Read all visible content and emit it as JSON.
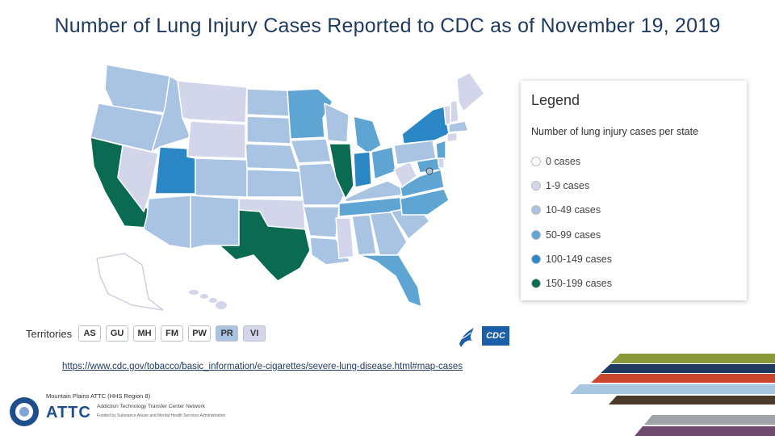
{
  "title": "Number of Lung Injury Cases Reported to CDC as of November 19, 2019",
  "legend": {
    "title": "Legend",
    "subtitle": "Number of lung injury cases per state",
    "items": [
      {
        "label": "0 cases",
        "color": "#ffffff"
      },
      {
        "label": "1-9 cases",
        "color": "#d3d6ea"
      },
      {
        "label": "10-49 cases",
        "color": "#a9c4e2"
      },
      {
        "label": "50-99 cases",
        "color": "#5ea5d4"
      },
      {
        "label": "100-149 cases",
        "color": "#2b86c5"
      },
      {
        "label": "150-199 cases",
        "color": "#0a6b52"
      }
    ]
  },
  "territories": {
    "label": "Territories",
    "items": [
      "AS",
      "GU",
      "MH",
      "FM",
      "PW",
      "PR",
      "VI"
    ]
  },
  "source_url": "https://www.cdc.gov/tobacco/basic_information/e-cigarettes/severe-lung-disease.html#map-cases",
  "logos": {
    "cdc": "CDC",
    "attc_region": "Mountain Plains ATTC (HHS Region 8)",
    "attc_name": "ATTC",
    "attc_network": "Addiction Technology Transfer Center Network",
    "attc_funded": "Funded by Substance Abuse and Mental Health Services Administration"
  }
}
